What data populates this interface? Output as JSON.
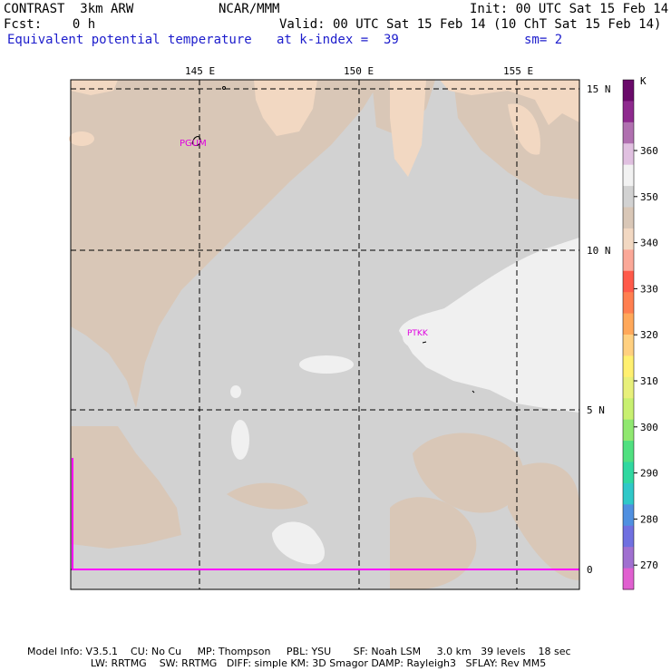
{
  "header": {
    "model": "CONTRAST  3km ARW",
    "center": "NCAR/MMM",
    "init": "Init: 00 UTC Sat 15 Feb 14",
    "fcst": "Fcst:    0 h",
    "valid": "Valid: 00 UTC Sat 15 Feb 14 (10 ChT Sat 15 Feb 14)",
    "field": "Equivalent potential temperature",
    "level": "at k-index =  39",
    "smooth": "sm= 2"
  },
  "map": {
    "lon_labels": [
      "145 E",
      "150 E",
      "155 E"
    ],
    "lat_labels": [
      "15 N",
      "10 N",
      "5 N",
      "0"
    ],
    "stations": [
      "PGUM",
      "PTKK"
    ]
  },
  "legend": {
    "unit": "K",
    "labels": [
      "360",
      "350",
      "340",
      "330",
      "320",
      "310",
      "300",
      "290",
      "280",
      "270"
    ],
    "colors": [
      "#6a0a6a",
      "#8e2a8e",
      "#b070b0",
      "#e0c0e0",
      "#f2f2f2",
      "#d2d2d2",
      "#d9c7b7",
      "#f2d8c2",
      "#fba898",
      "#ff5a4a",
      "#ff7f50",
      "#ffa85a",
      "#ffd080",
      "#fff070",
      "#e8f07a",
      "#c8f070",
      "#90e870",
      "#50e080",
      "#30d8a0",
      "#30c8c8",
      "#5090e0",
      "#7070e0",
      "#a070d0",
      "#e060d0"
    ]
  },
  "footer": {
    "line1": "Model Info: V3.5.1    CU: No Cu     MP: Thompson     PBL: YSU       SF: Noah LSM     3.0 km   39 levels    18 sec",
    "line2": "                    LW: RRTMG    SW: RRTMG   DIFF: simple KM: 3D Smagor DAMP: Rayleigh3   SFLAY: Rev MM5"
  }
}
